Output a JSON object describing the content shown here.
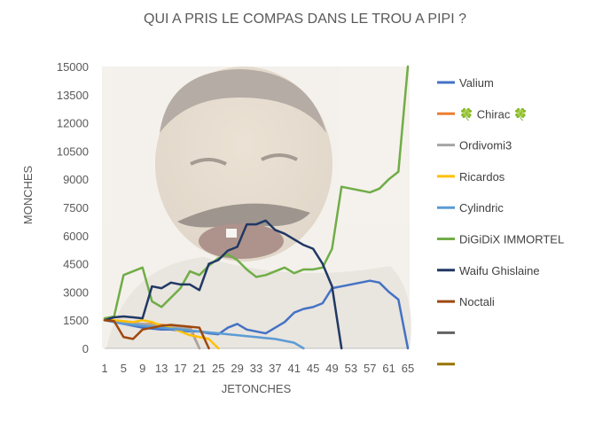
{
  "chart_data": {
    "type": "line",
    "title": "QUI A PRIS LE COMPAS DANS LE TROU A PIPI ?",
    "xlabel": "JETONCHES",
    "ylabel": "MONCHES",
    "ylim": [
      0,
      15000
    ],
    "y_ticks": [
      0,
      1500,
      3000,
      4500,
      6000,
      7500,
      9000,
      10500,
      12000,
      13500,
      15000
    ],
    "x_ticks": [
      1,
      5,
      9,
      13,
      17,
      21,
      25,
      29,
      33,
      37,
      41,
      45,
      49,
      53,
      57,
      61,
      65
    ],
    "x_range": [
      1,
      65
    ],
    "legend_position": "right",
    "background_image": "laughing-man-photo",
    "series": [
      {
        "name": "Valium",
        "color": "#4472C4",
        "x": [
          1,
          3,
          5,
          7,
          9,
          11,
          13,
          15,
          17,
          19,
          21,
          23,
          25,
          27,
          29,
          31,
          33,
          35,
          37,
          39,
          41,
          43,
          45,
          47,
          49,
          51,
          53,
          55,
          57,
          59,
          61,
          63,
          65
        ],
        "y": [
          1500,
          1400,
          1300,
          1200,
          1100,
          1050,
          1000,
          1000,
          950,
          900,
          900,
          800,
          750,
          1100,
          1300,
          1000,
          900,
          800,
          1100,
          1400,
          1900,
          2100,
          2200,
          2400,
          3200,
          3300,
          3400,
          3500,
          3600,
          3500,
          3000,
          2600,
          0
        ]
      },
      {
        "name": "Chirac",
        "label_prefix": "🍀",
        "label_suffix": "🍀",
        "color": "#ED7D31",
        "x": [
          1,
          3,
          5,
          7,
          9,
          11,
          13,
          15,
          17,
          19,
          21
        ],
        "y": [
          1500,
          1450,
          1400,
          1350,
          1300,
          1300,
          1250,
          1200,
          1200,
          1150,
          0
        ]
      },
      {
        "name": "Ordivomi3",
        "color": "#A5A5A5",
        "x": [
          1,
          3,
          5,
          7,
          9,
          11,
          13,
          15,
          17,
          19,
          21
        ],
        "y": [
          1500,
          1450,
          1400,
          1350,
          1300,
          1250,
          1200,
          1150,
          1100,
          1050,
          0
        ]
      },
      {
        "name": "Ricardos",
        "color": "#FFC000",
        "x": [
          1,
          3,
          5,
          7,
          9,
          11,
          13,
          15,
          17,
          19,
          21,
          23,
          25
        ],
        "y": [
          1500,
          1500,
          1450,
          1400,
          1500,
          1400,
          1200,
          1100,
          900,
          700,
          600,
          500,
          0
        ]
      },
      {
        "name": "Cylindric",
        "color": "#5B9BD5",
        "x": [
          1,
          3,
          5,
          7,
          9,
          11,
          13,
          15,
          17,
          19,
          21,
          23,
          25,
          27,
          29,
          31,
          33,
          35,
          37,
          39,
          41,
          43
        ],
        "y": [
          1500,
          1400,
          1300,
          1250,
          1200,
          1150,
          1100,
          1050,
          1000,
          950,
          900,
          850,
          800,
          750,
          700,
          650,
          600,
          550,
          500,
          400,
          300,
          0
        ]
      },
      {
        "name": "DiGiDiX IMMORTEL",
        "color": "#70AD47",
        "x": [
          1,
          3,
          5,
          7,
          9,
          11,
          13,
          15,
          17,
          19,
          21,
          23,
          25,
          27,
          29,
          31,
          33,
          35,
          37,
          39,
          41,
          43,
          45,
          47,
          49,
          51,
          53,
          55,
          57,
          59,
          61,
          63,
          65
        ],
        "y": [
          1600,
          1700,
          3900,
          4100,
          4300,
          2500,
          2200,
          2700,
          3200,
          4100,
          3900,
          4400,
          4800,
          5000,
          4700,
          4200,
          3800,
          3900,
          4100,
          4300,
          4000,
          4200,
          4200,
          4300,
          5300,
          8600,
          8500,
          8400,
          8300,
          8500,
          9000,
          9400,
          15000
        ]
      },
      {
        "name": "Waifu Ghislaine",
        "color": "#203864",
        "x": [
          1,
          3,
          5,
          7,
          9,
          11,
          13,
          15,
          17,
          19,
          21,
          23,
          25,
          27,
          29,
          31,
          33,
          35,
          37,
          39,
          41,
          43,
          45,
          47,
          49,
          51
        ],
        "y": [
          1500,
          1650,
          1700,
          1650,
          1600,
          3300,
          3200,
          3500,
          3400,
          3400,
          3100,
          4500,
          4700,
          5200,
          5400,
          6600,
          6600,
          6800,
          6300,
          6100,
          5800,
          5500,
          5300,
          4500,
          3300,
          0
        ]
      },
      {
        "name": "Noctali",
        "color": "#9E480E",
        "x": [
          1,
          3,
          5,
          7,
          9,
          11,
          13,
          15,
          17,
          19,
          21,
          23
        ],
        "y": [
          1500,
          1450,
          600,
          500,
          1000,
          1100,
          1200,
          1250,
          1200,
          1150,
          1100,
          0
        ]
      },
      {
        "name": "",
        "color": "#636363",
        "x": [],
        "y": []
      },
      {
        "name": "",
        "color": "#997300",
        "x": [],
        "y": []
      }
    ]
  }
}
